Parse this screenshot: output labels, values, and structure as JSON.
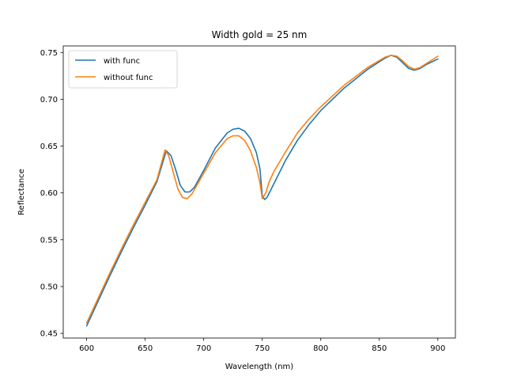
{
  "chart_data": {
    "type": "line",
    "title": "Width gold = 25 nm",
    "xlabel": "Wavelength (nm)",
    "ylabel": "Reflectance",
    "xlim": [
      580,
      915
    ],
    "ylim": [
      0.445,
      0.757
    ],
    "xticks": [
      600,
      650,
      700,
      750,
      800,
      850,
      900
    ],
    "yticks": [
      0.45,
      0.5,
      0.55,
      0.6,
      0.65,
      0.7,
      0.75
    ],
    "xtick_labels": [
      "600",
      "650",
      "700",
      "750",
      "800",
      "850",
      "900"
    ],
    "ytick_labels": [
      "0.45",
      "0.50",
      "0.55",
      "0.60",
      "0.65",
      "0.70",
      "0.75"
    ],
    "grid": false,
    "legend_position": "upper-left",
    "series": [
      {
        "name": "with func",
        "color": "#1f77b4",
        "x": [
          600,
          610,
          620,
          630,
          640,
          650,
          660,
          668,
          672,
          676,
          680,
          684,
          688,
          692,
          700,
          710,
          720,
          725,
          730,
          735,
          740,
          745,
          748,
          750,
          752,
          754,
          760,
          770,
          780,
          790,
          800,
          820,
          840,
          855,
          860,
          865,
          870,
          875,
          880,
          885,
          890,
          900
        ],
        "y": [
          0.458,
          0.485,
          0.512,
          0.538,
          0.563,
          0.587,
          0.612,
          0.645,
          0.64,
          0.625,
          0.608,
          0.601,
          0.601,
          0.606,
          0.624,
          0.648,
          0.664,
          0.668,
          0.669,
          0.666,
          0.658,
          0.643,
          0.626,
          0.597,
          0.593,
          0.595,
          0.61,
          0.635,
          0.656,
          0.673,
          0.688,
          0.712,
          0.732,
          0.744,
          0.747,
          0.745,
          0.739,
          0.733,
          0.731,
          0.733,
          0.737,
          0.743
        ]
      },
      {
        "name": "without func",
        "color": "#ff7f0e",
        "x": [
          600,
          610,
          620,
          630,
          640,
          650,
          660,
          667,
          670,
          674,
          678,
          682,
          686,
          690,
          700,
          710,
          720,
          725,
          730,
          735,
          740,
          745,
          748,
          750,
          753,
          756,
          760,
          770,
          780,
          790,
          800,
          820,
          840,
          855,
          860,
          865,
          870,
          875,
          880,
          885,
          890,
          900
        ],
        "y": [
          0.461,
          0.488,
          0.515,
          0.541,
          0.566,
          0.59,
          0.614,
          0.646,
          0.64,
          0.622,
          0.604,
          0.595,
          0.594,
          0.599,
          0.621,
          0.643,
          0.658,
          0.661,
          0.661,
          0.656,
          0.645,
          0.627,
          0.611,
          0.594,
          0.6,
          0.612,
          0.623,
          0.644,
          0.664,
          0.679,
          0.692,
          0.715,
          0.734,
          0.745,
          0.747,
          0.746,
          0.741,
          0.735,
          0.732,
          0.734,
          0.738,
          0.746
        ]
      }
    ]
  }
}
